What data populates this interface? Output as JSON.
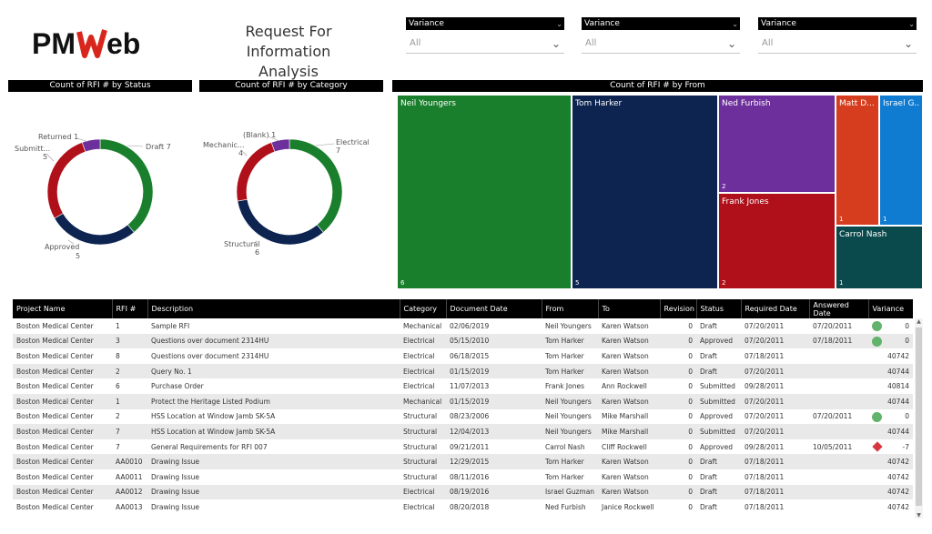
{
  "logo": {
    "text": "PMWeb"
  },
  "title": {
    "line1": "Request For Information",
    "line2": "Analysis"
  },
  "slicers": [
    {
      "label": "Variance",
      "value": "All"
    },
    {
      "label": "Variance",
      "value": "All"
    },
    {
      "label": "Variance",
      "value": "All"
    }
  ],
  "colors": {
    "green": "#1a7f2c",
    "navy": "#0d2451",
    "red": "#b01019",
    "purple": "#6d2f9c",
    "orange": "#d63d1e",
    "blue": "#0f7bd1",
    "teal": "#0b4a4c"
  },
  "chart_status": {
    "title": "Count of RFI # by Status",
    "chart_data": {
      "type": "pie",
      "categories": [
        "Draft",
        "Approved",
        "Submitted",
        "Returned"
      ],
      "values": [
        7,
        5,
        5,
        1
      ],
      "labels": [
        {
          "name": "Draft",
          "value": "7",
          "text": "Draft 7"
        },
        {
          "name": "Approved",
          "value": "5",
          "text": "Approved",
          "sub": "5"
        },
        {
          "name": "Submitted",
          "value": "5",
          "text": "Submitt...",
          "sub": "5"
        },
        {
          "name": "Returned",
          "value": "1",
          "text": "Returned 1"
        }
      ]
    }
  },
  "chart_category": {
    "title": "Count of RFI # by Category",
    "chart_data": {
      "type": "pie",
      "categories": [
        "Electrical",
        "Structural",
        "Mechanical",
        "(Blank)"
      ],
      "values": [
        7,
        6,
        4,
        1
      ],
      "labels": [
        {
          "text": "Electrical",
          "sub": "7"
        },
        {
          "text": "Structural",
          "sub": "6"
        },
        {
          "text": "Mechanic...",
          "sub": "4"
        },
        {
          "text": "(Blank) 1"
        }
      ]
    }
  },
  "chart_from": {
    "title": "Count of RFI # by From",
    "chart_data": {
      "type": "treemap",
      "categories": [
        "Neil Youngers",
        "Tom Harker",
        "Ned Furbish",
        "Frank Jones",
        "Matt D...",
        "Israel G...",
        "Carrol Nash"
      ],
      "values": [
        6,
        5,
        2,
        2,
        1,
        1,
        1
      ],
      "counts": [
        "6",
        "5",
        "2",
        "2",
        "1",
        "1",
        "1"
      ]
    }
  },
  "table": {
    "columns": [
      "Project Name",
      "RFI #",
      "Description",
      "Category",
      "Document Date",
      "From",
      "To",
      "Revision",
      "Status",
      "Required Date",
      "Answered Date",
      "Variance"
    ],
    "rows": [
      [
        "Boston Medical Center",
        "1",
        "Sample RFI",
        "Mechanical",
        "02/06/2019",
        "Neil Youngers",
        "Karen Watson",
        "0",
        "Draft",
        "07/20/2011",
        "07/20/2011",
        "0"
      ],
      [
        "Boston Medical Center",
        "3",
        "Questions over document 2314HU",
        "Electrical",
        "05/15/2010",
        "Tom Harker",
        "Karen Watson",
        "0",
        "Approved",
        "07/20/2011",
        "07/18/2011",
        "0"
      ],
      [
        "Boston Medical Center",
        "8",
        "Questions over document 2314HU",
        "Electrical",
        "06/18/2015",
        "Tom Harker",
        "Karen Watson",
        "0",
        "Draft",
        "07/18/2011",
        "",
        "40742"
      ],
      [
        "Boston Medical Center",
        "2",
        "Query No. 1",
        "Electrical",
        "01/15/2019",
        "Tom Harker",
        "Karen Watson",
        "0",
        "Draft",
        "07/20/2011",
        "",
        "40744"
      ],
      [
        "Boston Medical Center",
        "6",
        "Purchase Order",
        "Electrical",
        "11/07/2013",
        "Frank Jones",
        "Ann Rockwell",
        "0",
        "Submitted",
        "09/28/2011",
        "",
        "40814"
      ],
      [
        "Boston Medical Center",
        "1",
        "Protect the Heritage Listed Podium",
        "Mechanical",
        "01/15/2019",
        "Neil Youngers",
        "Karen Watson",
        "0",
        "Submitted",
        "07/20/2011",
        "",
        "40744"
      ],
      [
        "Boston Medical Center",
        "2",
        "HSS Location at Window Jamb SK-5A",
        "Structural",
        "08/23/2006",
        "Neil Youngers",
        "Mike Marshall",
        "0",
        "Approved",
        "07/20/2011",
        "07/20/2011",
        "0"
      ],
      [
        "Boston Medical Center",
        "7",
        "HSS Location at Window Jamb SK-5A",
        "Structural",
        "12/04/2013",
        "Neil Youngers",
        "Mike Marshall",
        "0",
        "Submitted",
        "07/20/2011",
        "",
        "40744"
      ],
      [
        "Boston Medical Center",
        "7",
        "General Requirements for RFI 007",
        "Structural",
        "09/21/2011",
        "Carrol Nash",
        "Cliff Rockwell",
        "0",
        "Approved",
        "09/28/2011",
        "10/05/2011",
        "-7"
      ],
      [
        "Boston Medical Center",
        "AA0010",
        "Drawing Issue",
        "Structural",
        "12/29/2015",
        "Tom Harker",
        "Karen Watson",
        "0",
        "Draft",
        "07/18/2011",
        "",
        "40742"
      ],
      [
        "Boston Medical Center",
        "AA0011",
        "Drawing Issue",
        "Structural",
        "08/11/2016",
        "Tom Harker",
        "Karen Watson",
        "0",
        "Draft",
        "07/18/2011",
        "",
        "40742"
      ],
      [
        "Boston Medical Center",
        "AA0012",
        "Drawing Issue",
        "Electrical",
        "08/19/2016",
        "Israel Guzman",
        "Karen Watson",
        "0",
        "Draft",
        "07/18/2011",
        "",
        "40742"
      ],
      [
        "Boston Medical Center",
        "AA0013",
        "Drawing Issue",
        "Electrical",
        "08/20/2018",
        "Ned Furbish",
        "Janice Rockwell",
        "0",
        "Draft",
        "07/18/2011",
        "",
        "40742"
      ]
    ],
    "variance_icons": [
      "green-circle",
      "green-circle",
      "",
      "",
      "",
      "",
      "green-circle",
      "",
      "red-diamond",
      "",
      "",
      "",
      ""
    ]
  }
}
